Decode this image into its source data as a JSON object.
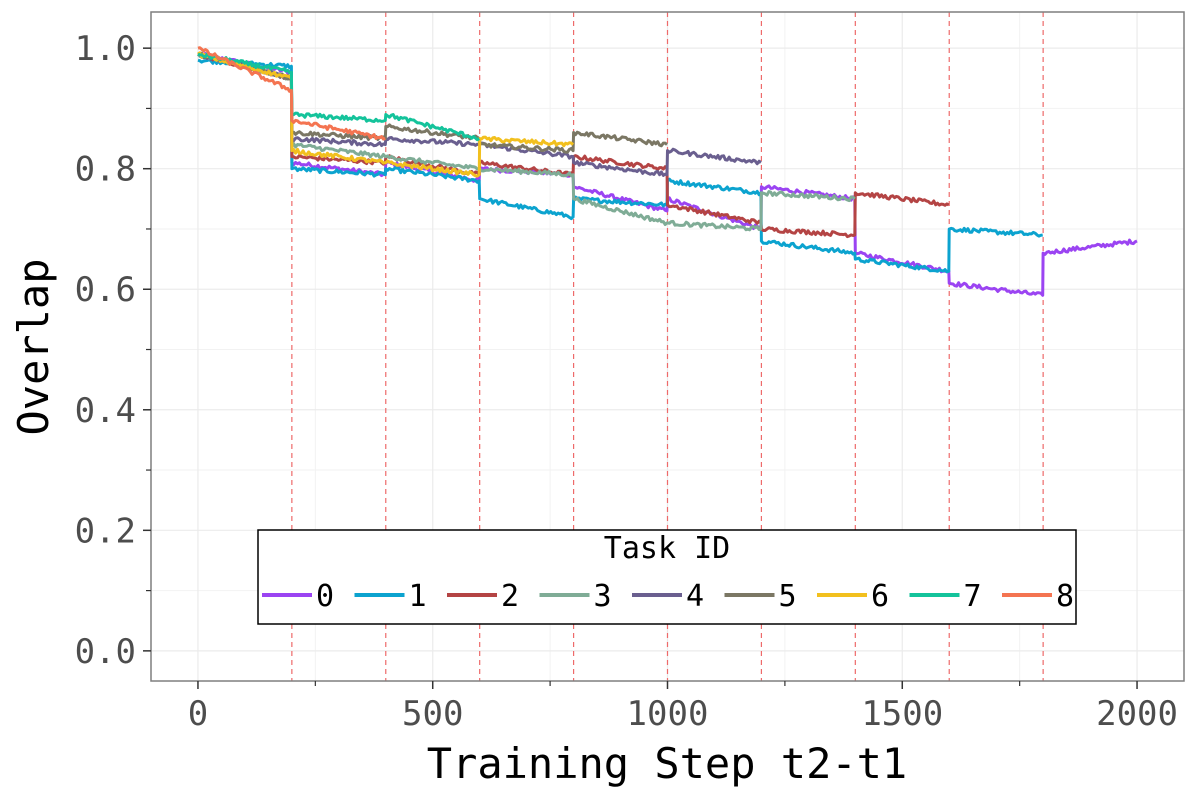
{
  "chart_data": {
    "type": "line",
    "title": "",
    "xlabel": "Training Step t2-t1",
    "ylabel": "Overlap",
    "xlim": [
      -100,
      2100
    ],
    "ylim": [
      -0.05,
      1.06
    ],
    "xticks": [
      0,
      500,
      1000,
      1500,
      2000
    ],
    "xtick_labels": [
      "0",
      "500",
      "1000",
      "1500",
      "2000"
    ],
    "yticks": [
      0.0,
      0.2,
      0.4,
      0.6,
      0.8,
      1.0
    ],
    "ytick_labels": [
      "0.0",
      "0.2",
      "0.4",
      "0.6",
      "0.8",
      "1.0"
    ],
    "grid": true,
    "vlines": {
      "x": [
        200,
        400,
        600,
        800,
        1000,
        1200,
        1400,
        1600,
        1800
      ],
      "color": "#ee6a6a",
      "style": "dashed"
    },
    "legend": {
      "title": "Task ID",
      "placement": "bottom-center",
      "orientation": "horizontal"
    },
    "series": [
      {
        "name": "0",
        "color": "#9b44f2",
        "points": [
          [
            0,
            0.99
          ],
          [
            199,
            0.96
          ],
          [
            200,
            0.81
          ],
          [
            399,
            0.79
          ],
          [
            400,
            0.81
          ],
          [
            599,
            0.78
          ],
          [
            600,
            0.8
          ],
          [
            799,
            0.79
          ],
          [
            800,
            0.77
          ],
          [
            999,
            0.73
          ],
          [
            1000,
            0.75
          ],
          [
            1199,
            0.7
          ],
          [
            1200,
            0.77
          ],
          [
            1399,
            0.75
          ],
          [
            1400,
            0.66
          ],
          [
            1599,
            0.63
          ],
          [
            1600,
            0.61
          ],
          [
            1799,
            0.59
          ],
          [
            1800,
            0.66
          ],
          [
            2000,
            0.68
          ]
        ]
      },
      {
        "name": "1",
        "color": "#0ca3cf",
        "points": [
          [
            0,
            0.98
          ],
          [
            199,
            0.97
          ],
          [
            200,
            0.8
          ],
          [
            399,
            0.79
          ],
          [
            400,
            0.8
          ],
          [
            599,
            0.78
          ],
          [
            600,
            0.75
          ],
          [
            799,
            0.72
          ],
          [
            800,
            0.75
          ],
          [
            999,
            0.74
          ],
          [
            1000,
            0.78
          ],
          [
            1199,
            0.76
          ],
          [
            1200,
            0.68
          ],
          [
            1399,
            0.66
          ],
          [
            1400,
            0.65
          ],
          [
            1599,
            0.63
          ],
          [
            1600,
            0.7
          ],
          [
            1799,
            0.69
          ]
        ]
      },
      {
        "name": "2",
        "color": "#b44444",
        "points": [
          [
            0,
            0.99
          ],
          [
            199,
            0.95
          ],
          [
            200,
            0.82
          ],
          [
            399,
            0.81
          ],
          [
            400,
            0.82
          ],
          [
            599,
            0.79
          ],
          [
            600,
            0.81
          ],
          [
            799,
            0.79
          ],
          [
            800,
            0.82
          ],
          [
            999,
            0.8
          ],
          [
            1000,
            0.74
          ],
          [
            1199,
            0.71
          ],
          [
            1200,
            0.7
          ],
          [
            1399,
            0.69
          ],
          [
            1400,
            0.76
          ],
          [
            1599,
            0.74
          ]
        ]
      },
      {
        "name": "3",
        "color": "#7fac96",
        "points": [
          [
            0,
            0.99
          ],
          [
            199,
            0.95
          ],
          [
            200,
            0.84
          ],
          [
            399,
            0.82
          ],
          [
            400,
            0.82
          ],
          [
            599,
            0.8
          ],
          [
            600,
            0.8
          ],
          [
            799,
            0.79
          ],
          [
            800,
            0.75
          ],
          [
            999,
            0.71
          ],
          [
            1000,
            0.71
          ],
          [
            1199,
            0.7
          ],
          [
            1200,
            0.76
          ],
          [
            1399,
            0.75
          ]
        ]
      },
      {
        "name": "4",
        "color": "#6a5f8f",
        "points": [
          [
            0,
            0.99
          ],
          [
            199,
            0.95
          ],
          [
            200,
            0.85
          ],
          [
            399,
            0.84
          ],
          [
            400,
            0.85
          ],
          [
            599,
            0.84
          ],
          [
            600,
            0.84
          ],
          [
            799,
            0.82
          ],
          [
            800,
            0.81
          ],
          [
            999,
            0.79
          ],
          [
            1000,
            0.83
          ],
          [
            1199,
            0.81
          ]
        ]
      },
      {
        "name": "5",
        "color": "#7b7764",
        "points": [
          [
            0,
            0.99
          ],
          [
            199,
            0.95
          ],
          [
            200,
            0.86
          ],
          [
            399,
            0.85
          ],
          [
            400,
            0.87
          ],
          [
            599,
            0.85
          ],
          [
            600,
            0.84
          ],
          [
            799,
            0.83
          ],
          [
            800,
            0.86
          ],
          [
            999,
            0.84
          ]
        ]
      },
      {
        "name": "6",
        "color": "#f2c01e",
        "points": [
          [
            0,
            0.99
          ],
          [
            199,
            0.95
          ],
          [
            200,
            0.83
          ],
          [
            399,
            0.81
          ],
          [
            400,
            0.81
          ],
          [
            599,
            0.79
          ],
          [
            600,
            0.85
          ],
          [
            799,
            0.84
          ]
        ]
      },
      {
        "name": "7",
        "color": "#14c39b",
        "points": [
          [
            0,
            0.99
          ],
          [
            199,
            0.96
          ],
          [
            200,
            0.89
          ],
          [
            399,
            0.88
          ],
          [
            400,
            0.89
          ],
          [
            599,
            0.85
          ]
        ]
      },
      {
        "name": "8",
        "color": "#f47451",
        "points": [
          [
            0,
            1.0
          ],
          [
            199,
            0.93
          ],
          [
            200,
            0.88
          ],
          [
            399,
            0.85
          ]
        ]
      }
    ]
  }
}
